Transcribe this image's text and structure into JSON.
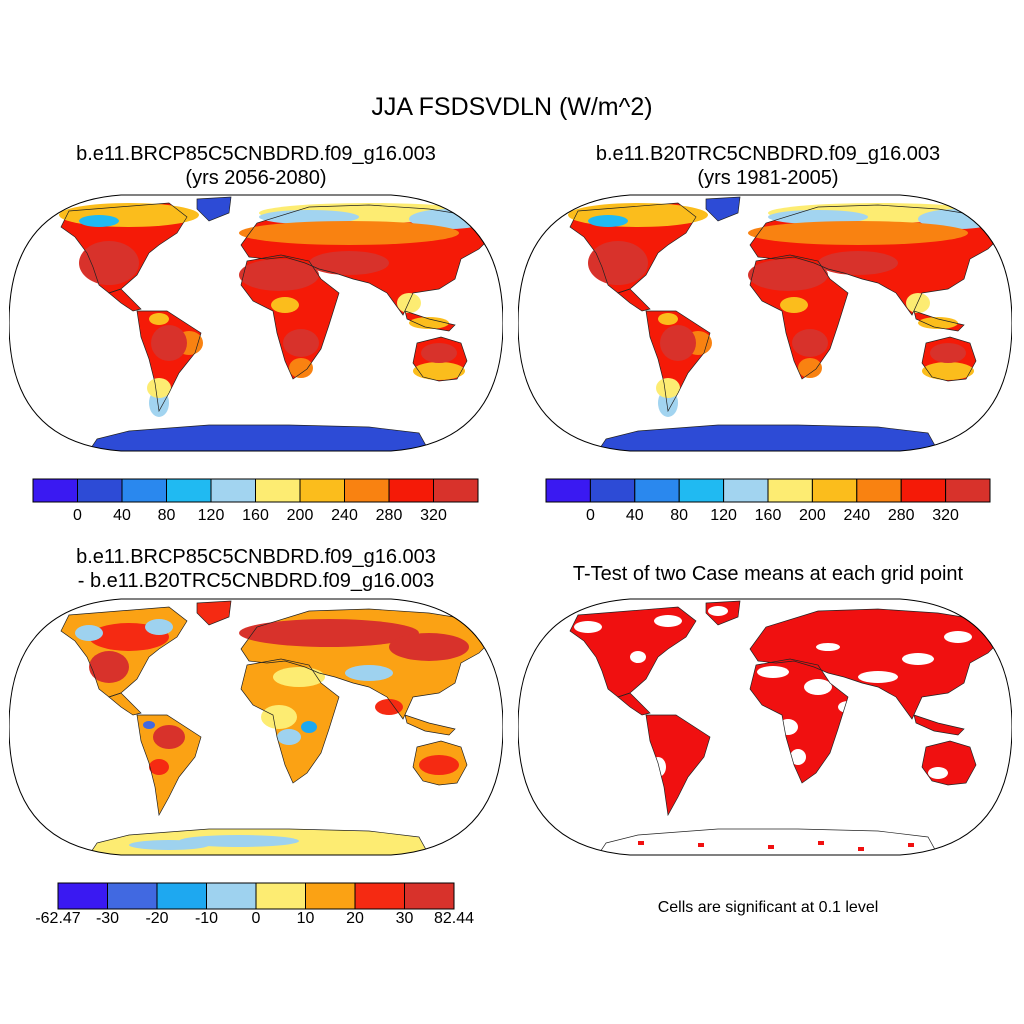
{
  "title": "JJA FSDSVDLN (W/m^2)",
  "panels": [
    {
      "id": "p1",
      "title_line1": "b.e11.BRCP85C5CNBDRD.f09_g16.003",
      "title_line2": "(yrs 2056-2080)",
      "kind": "field"
    },
    {
      "id": "p2",
      "title_line1": "b.e11.B20TRC5CNBDRD.f09_g16.003",
      "title_line2": "(yrs 1981-2005)",
      "kind": "field"
    },
    {
      "id": "p3",
      "title_line1": "b.e11.BRCP85C5CNBDRD.f09_g16.003",
      "title_line2": "- b.e11.B20TRC5CNBDRD.f09_g16.003",
      "kind": "difference"
    },
    {
      "id": "p4",
      "title_line1": "T-Test of two Case means at each grid point",
      "kind": "significance"
    }
  ],
  "colorbar_top": {
    "colors": [
      "#3a19f2",
      "#2d4bd6",
      "#2a88ee",
      "#20baf2",
      "#a2d4f0",
      "#fdec72",
      "#fbbd1c",
      "#f98211",
      "#f51a07",
      "#d8322b"
    ],
    "labels": [
      "0",
      "40",
      "80",
      "120",
      "160",
      "200",
      "240",
      "280",
      "320"
    ]
  },
  "colorbar_diff": {
    "colors": [
      "#3a19f2",
      "#4169e1",
      "#1ea8f0",
      "#9ed2ef",
      "#fdec72",
      "#fba214",
      "#f52a12",
      "#d8322b"
    ],
    "labels": [
      "-62.47",
      "-30",
      "-20",
      "-10",
      "0",
      "10",
      "20",
      "30",
      "82.44"
    ]
  },
  "significance_color": "#f01010",
  "significance_note": "Cells are significant at 0.1 level"
}
